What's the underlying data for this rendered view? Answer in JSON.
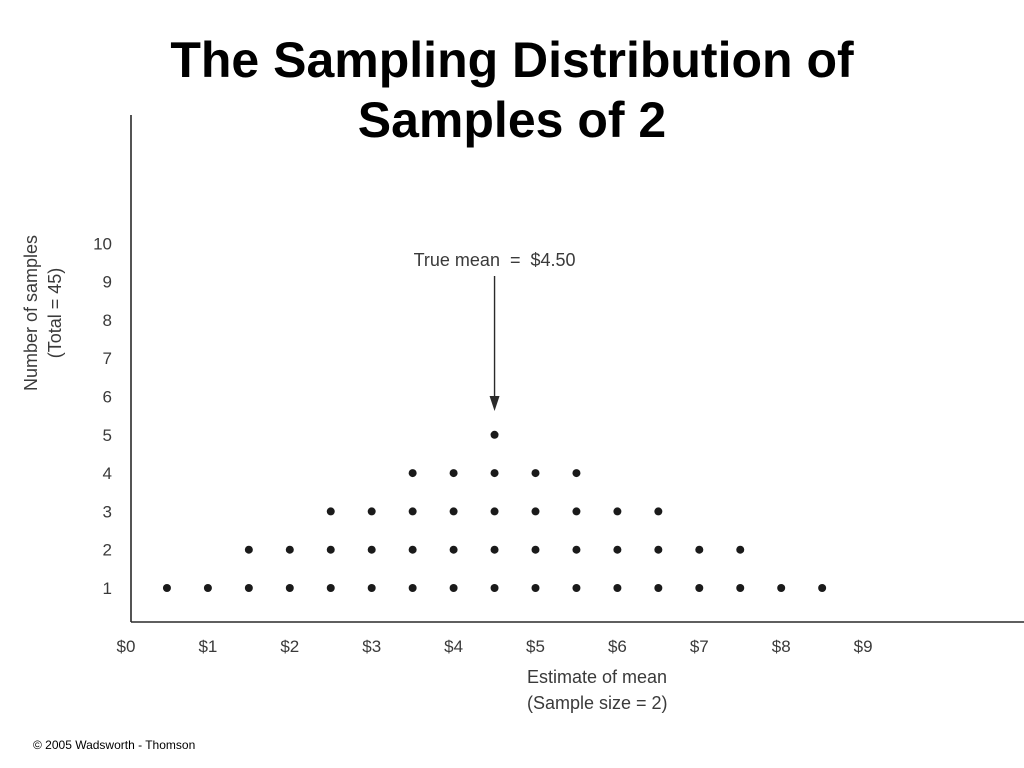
{
  "slide": {
    "title_line1": "The Sampling Distribution of",
    "title_line2": "Samples of 2",
    "footer": "© 2005 Wadsworth - Thomson"
  },
  "chart_data": {
    "type": "scatter",
    "style": "dot-plot",
    "ylabel_line1": "Number of samples",
    "ylabel_line2": "(Total = 45)",
    "xlabel_line1": "Estimate of mean",
    "xlabel_line2": "(Sample size = 2)",
    "x_ticks": [
      "$0",
      "$1",
      "$2",
      "$3",
      "$4",
      "$5",
      "$6",
      "$7",
      "$8",
      "$9"
    ],
    "y_ticks": [
      "1",
      "2",
      "3",
      "4",
      "5",
      "6",
      "7",
      "8",
      "9",
      "10"
    ],
    "xlim": [
      0,
      9
    ],
    "ylim": [
      1,
      10
    ],
    "x": [
      0.5,
      1.0,
      1.5,
      2.0,
      2.5,
      3.0,
      3.5,
      4.0,
      4.5,
      5.0,
      5.5,
      6.0,
      6.5,
      7.0,
      7.5,
      8.0,
      8.5
    ],
    "counts": [
      1,
      1,
      2,
      2,
      3,
      3,
      4,
      4,
      5,
      4,
      4,
      3,
      3,
      2,
      2,
      1,
      1
    ],
    "annotation": {
      "text": "True mean  =  $4.50",
      "x": 4.5
    },
    "grid": false,
    "point_color": "#1a1a1a",
    "axis_color": "#2a2a2a"
  }
}
